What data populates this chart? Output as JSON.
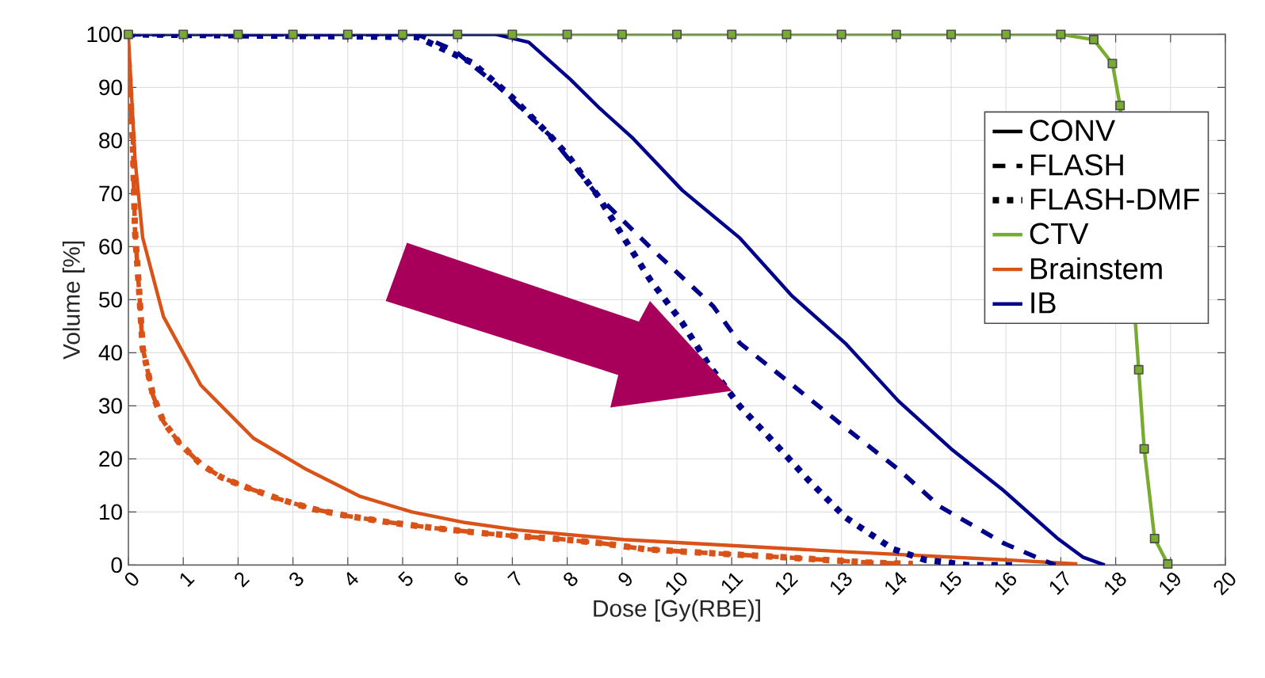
{
  "chart_data": {
    "type": "line",
    "xlabel": "Dose [Gy(RBE)]",
    "ylabel": "Volume [%]",
    "xlim": [
      0,
      20
    ],
    "ylim": [
      0,
      100
    ],
    "xticks": [
      0,
      1,
      2,
      3,
      4,
      5,
      6,
      7,
      8,
      9,
      10,
      11,
      12,
      13,
      14,
      15,
      16,
      17,
      18,
      19,
      20
    ],
    "yticks": [
      0,
      10,
      20,
      30,
      40,
      50,
      60,
      70,
      80,
      90,
      100
    ],
    "grid": true,
    "legend": "right",
    "series": [
      {
        "name": "CONV",
        "color": "#000000",
        "line_style": "solid"
      },
      {
        "name": "FLASH",
        "color": "#000000",
        "line_style": "dashed"
      },
      {
        "name": "FLASH-DMF",
        "color": "#000000",
        "line_style": "dotted"
      },
      {
        "name": "CTV",
        "color": "#77ac30",
        "line_style": "solid",
        "marker": "square",
        "x": [
          0,
          1,
          2,
          3,
          4,
          5,
          6,
          7,
          8,
          9,
          10,
          11,
          12,
          13,
          14,
          15,
          16,
          17,
          17.6,
          17.94,
          18.08,
          18.27,
          18.42,
          18.52,
          18.71,
          18.95
        ],
        "values": [
          100,
          100,
          100,
          100,
          100,
          100,
          100,
          100,
          100,
          100,
          100,
          100,
          100,
          100,
          100,
          100,
          100,
          100,
          99,
          94.5,
          86.6,
          null,
          36.8,
          21.9,
          5,
          0.2
        ]
      },
      {
        "name": "Brainstem",
        "color": "#d95319",
        "line_style": "solid",
        "x": [
          0,
          0.12,
          0.26,
          0.64,
          1.32,
          2.28,
          3.25,
          4.21,
          5.17,
          6.14,
          7.1,
          9.03,
          13.07,
          15.96,
          17.3
        ],
        "values": [
          99.6,
          76.6,
          61.7,
          46.8,
          33.9,
          23.9,
          18,
          13,
          10,
          8,
          6.6,
          4.8,
          2.5,
          1,
          0.2
        ]
      },
      {
        "name": "IB",
        "color": "#00008b",
        "line_style": "solid",
        "x": [
          0,
          6.7,
          7.3,
          8.06,
          8.6,
          9.2,
          10.1,
          11.15,
          12.1,
          13.07,
          14.04,
          15,
          15.96,
          16.93,
          17.4,
          17.8
        ],
        "values": [
          100,
          100,
          98.5,
          91.5,
          86,
          80.4,
          70.6,
          61.6,
          50.7,
          41.8,
          30.9,
          21.9,
          14,
          5.1,
          1.5,
          0
        ]
      },
      {
        "color": "#d95319",
        "line_style": "dashed",
        "x": [
          0,
          0.08,
          0.12,
          0.2,
          0.26,
          0.45,
          0.64,
          0.93,
          1.32,
          1.7,
          2.19,
          2.76,
          3.39,
          4.02,
          4.79,
          5.55,
          6.28,
          7,
          7.87,
          8.64,
          9.41,
          10.18,
          11.73,
          13.46,
          14.3
        ],
        "values": [
          95,
          80,
          63,
          51,
          40.9,
          31.9,
          27,
          23,
          19,
          16.5,
          14.5,
          12.4,
          10.5,
          9.2,
          8,
          7,
          6.2,
          5.5,
          4.9,
          4.1,
          3,
          2.5,
          1.6,
          0.5,
          0.2
        ]
      },
      {
        "color": "#d95319",
        "line_style": "dotted",
        "x": [
          0,
          0.08,
          0.12,
          0.2,
          0.26,
          0.45,
          0.64,
          0.93,
          1.32,
          1.7,
          2.19,
          2.76,
          3.39,
          4.02,
          4.79,
          5.55,
          6.28,
          7,
          7.87,
          8.64,
          9.41,
          10.18,
          11.73,
          13.46,
          14.3
        ],
        "values": [
          95,
          80,
          63,
          51,
          40.9,
          31.9,
          27,
          23,
          19,
          16.5,
          14.5,
          12.4,
          10.5,
          9.2,
          8,
          7,
          6.2,
          5.5,
          4.9,
          4.1,
          3,
          2.5,
          1.6,
          0.5,
          0.2
        ]
      },
      {
        "color": "#00008b",
        "line_style": "dashed",
        "x": [
          0,
          5.27,
          5.94,
          6.71,
          7.68,
          8.55,
          9.55,
          10.66,
          11.15,
          12.11,
          13.07,
          14.04,
          14.8,
          15.96,
          16.64,
          16.9
        ],
        "values": [
          100,
          100,
          97,
          90.5,
          81,
          69.7,
          59.5,
          48.8,
          41.8,
          33.9,
          25.9,
          18,
          11,
          4.1,
          1.1,
          0
        ]
      },
      {
        "color": "#00008b",
        "line_style": "dotted",
        "x": [
          0,
          5.27,
          6.28,
          7,
          7.68,
          8.01,
          8.55,
          9.03,
          9.51,
          10.09,
          10.57,
          11.15,
          11.78,
          12.4,
          13.07,
          13.94,
          14.52,
          15.29,
          16.2
        ],
        "values": [
          100,
          99.5,
          94.6,
          88.1,
          81,
          77.2,
          69.7,
          61.7,
          53.8,
          45.8,
          37.9,
          29.9,
          23,
          16,
          9,
          3,
          1,
          0,
          0
        ]
      }
    ]
  }
}
